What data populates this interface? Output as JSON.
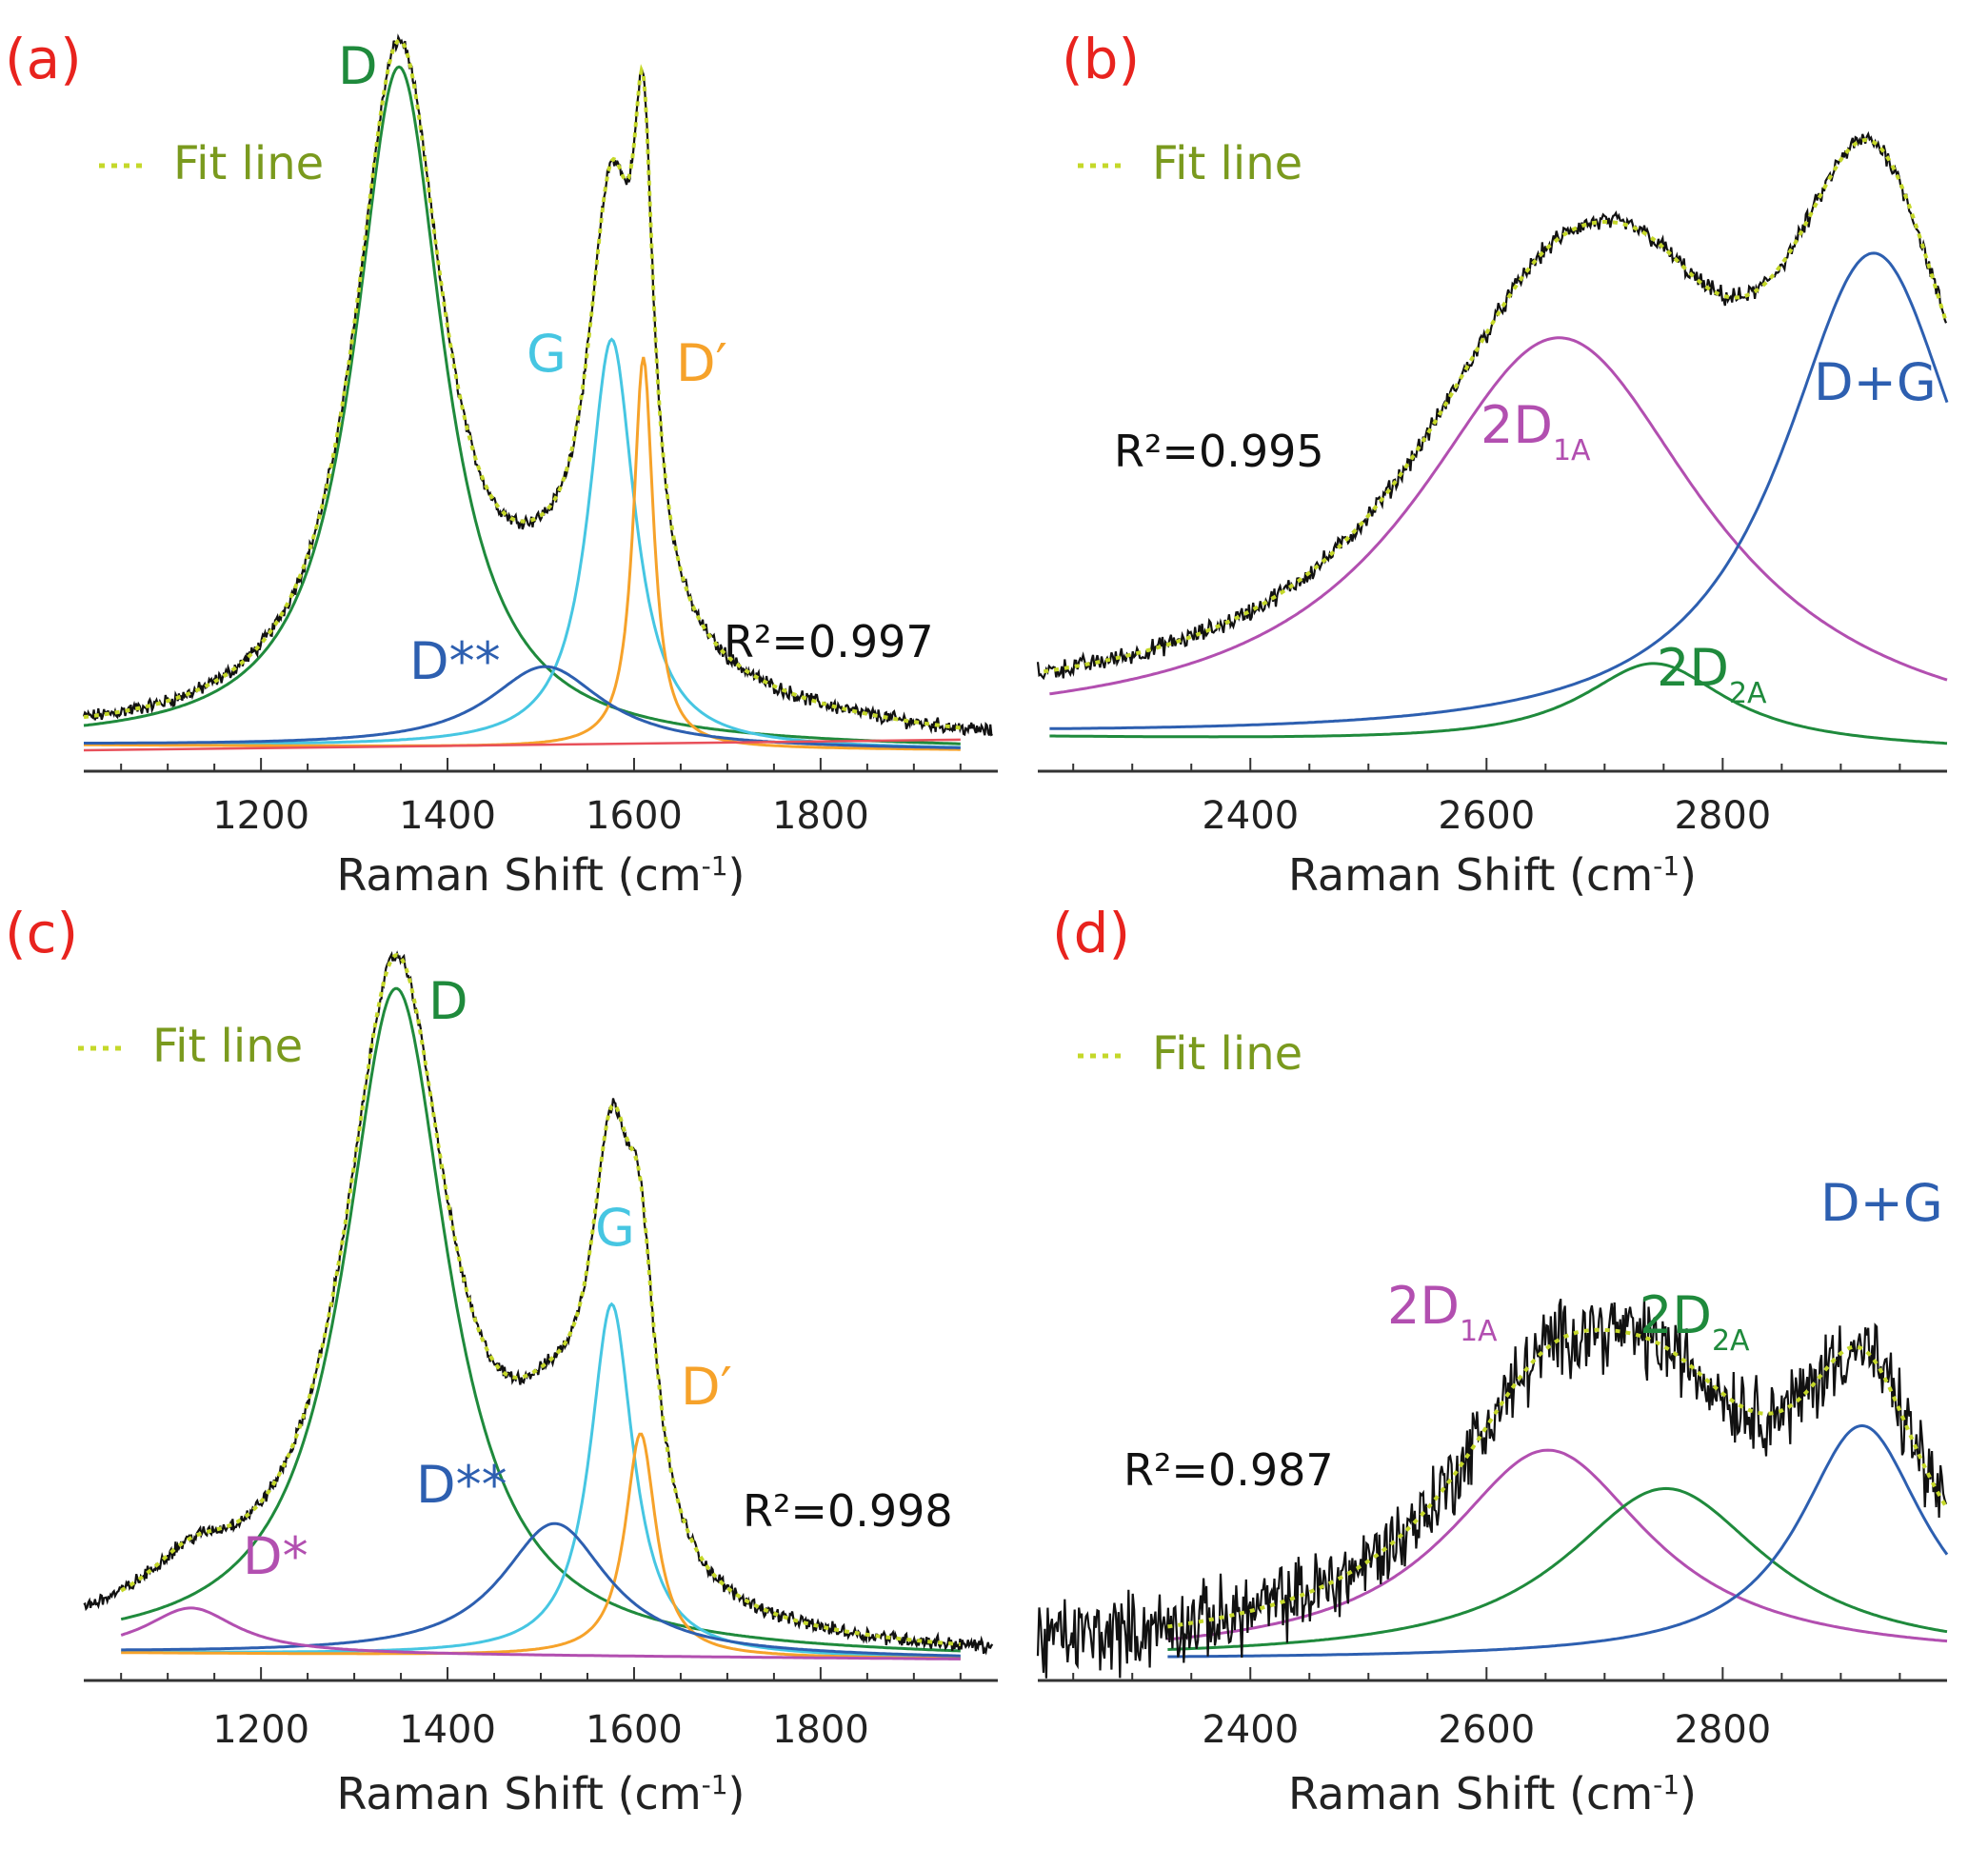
{
  "colors": {
    "panel_letter": "#e8231e",
    "data": "#111111",
    "fit": "#c5d82a",
    "legend_text": "#7a9a1e",
    "D": "#1f8a3c",
    "G": "#46c6e2",
    "D_prime": "#f6a22a",
    "D_star_star": "#2d5fb0",
    "D_star": "#b24fb0",
    "D_plus_G": "#2d5fb0",
    "2D_1A": "#b24fb0",
    "2D_2A": "#1f8a3c",
    "baseline_red": "#e8505a"
  },
  "chart_data": [
    {
      "panel": "(a)",
      "type": "line",
      "xlabel": "Raman Shift (cm",
      "xlabel_sup": "-1",
      "xlabel_end": ")",
      "xlim": [
        1010,
        1990
      ],
      "ylim": [
        0,
        1.0
      ],
      "xticks": [
        1200,
        1400,
        1600,
        1800
      ],
      "legend": {
        "label": "Fit line",
        "position": "top-left"
      },
      "annotation": "R²=0.997",
      "x_range": [
        1010,
        1985
      ],
      "fit_range": [
        1010,
        1950
      ],
      "noise": 0.008,
      "baseline": [
        0.015,
        0.0
      ],
      "extra_linear": {
        "from": [
          1010,
          0.0
        ],
        "to": [
          1950,
          0.015
        ]
      },
      "series": [
        {
          "name": "D",
          "center": 1348,
          "hwhm": 58,
          "amp": 0.965,
          "key": "D",
          "range": [
            1010,
            1950
          ]
        },
        {
          "name": "G",
          "center": 1576,
          "hwhm": 30,
          "amp": 0.58,
          "key": "G",
          "range": [
            1010,
            1950
          ]
        },
        {
          "name": "D′",
          "center": 1610,
          "hwhm": 13,
          "amp": 0.555,
          "key": "D_prime",
          "range": [
            1010,
            1950
          ]
        },
        {
          "name": "D**",
          "center": 1505,
          "hwhm": 75,
          "amp": 0.115,
          "key": "D_star_star",
          "range": [
            1010,
            1950
          ]
        }
      ],
      "tail": {
        "center": 1640,
        "width": 70,
        "amp": 0.06,
        "decay": 220
      }
    },
    {
      "panel": "(b)",
      "type": "line",
      "xlabel": "Raman Shift (cm",
      "xlabel_sup": "-1",
      "xlabel_end": ")",
      "xlim": [
        2220,
        2990
      ],
      "ylim": [
        0,
        1.0
      ],
      "xticks": [
        2400,
        2600,
        2800
      ],
      "legend": {
        "label": "Fit line",
        "position": "top-left"
      },
      "annotation": "R²=0.995",
      "x_range": [
        2220,
        2990
      ],
      "fit_range": [
        2225,
        2990
      ],
      "noise": 0.012,
      "baseline": [
        0.04,
        0.0
      ],
      "series": [
        {
          "name": "2D",
          "sub": "1A",
          "center": 2662,
          "hwhm": 150,
          "amp": 0.64,
          "key": "2D_1A",
          "range": [
            2230,
            2990
          ]
        },
        {
          "name": "2D",
          "sub": "2A",
          "center": 2742,
          "hwhm": 75,
          "amp": 0.13,
          "key": "2D_2A",
          "range": [
            2230,
            2990
          ]
        },
        {
          "name": "D+G",
          "center": 2928,
          "hwhm": 95,
          "amp": 0.78,
          "key": "D_plus_G",
          "range": [
            2230,
            2990
          ]
        }
      ]
    },
    {
      "panel": "(c)",
      "type": "line",
      "xlabel": "Raman Shift (cm",
      "xlabel_sup": "-1",
      "xlabel_end": ")",
      "xlim": [
        1010,
        1990
      ],
      "ylim": [
        0,
        1.0
      ],
      "xticks": [
        1200,
        1400,
        1600,
        1800
      ],
      "legend": {
        "label": "Fit line",
        "position": "top-left"
      },
      "annotation": "R²=0.998",
      "x_range": [
        1010,
        1985
      ],
      "fit_range": [
        1050,
        1950
      ],
      "noise": 0.008,
      "baseline": [
        0.02,
        0.0
      ],
      "series": [
        {
          "name": "D",
          "center": 1345,
          "hwhm": 68,
          "amp": 0.955,
          "key": "D",
          "range": [
            1050,
            1950
          ]
        },
        {
          "name": "G",
          "center": 1576,
          "hwhm": 28,
          "amp": 0.505,
          "key": "G",
          "range": [
            1050,
            1950
          ]
        },
        {
          "name": "D′",
          "center": 1607,
          "hwhm": 20,
          "amp": 0.32,
          "key": "D_prime",
          "range": [
            1050,
            1950
          ]
        },
        {
          "name": "D**",
          "center": 1515,
          "hwhm": 70,
          "amp": 0.19,
          "key": "D_star_star",
          "range": [
            1050,
            1950
          ]
        },
        {
          "name": "D*",
          "center": 1125,
          "hwhm": 60,
          "amp": 0.065,
          "key": "D_star",
          "range": [
            1050,
            1950
          ]
        }
      ]
    },
    {
      "panel": "(d)",
      "type": "line",
      "legend": {
        "label": "Fit line",
        "position": "top-left"
      },
      "xlabel": "Raman Shift (cm",
      "xlabel_sup": "-1",
      "xlabel_end": ")",
      "xlim": [
        2220,
        2990
      ],
      "ylim": [
        0,
        1.0
      ],
      "xticks": [
        2400,
        2600,
        2800
      ],
      "annotation": "R²=0.987",
      "x_range": [
        2220,
        2990
      ],
      "fit_range": [
        2330,
        2990
      ],
      "noise": 0.045,
      "baseline": [
        0.0,
        0.0
      ],
      "series": [
        {
          "name": "2D",
          "sub": "1A",
          "center": 2652,
          "hwhm": 105,
          "amp": 0.3,
          "key": "2D_1A",
          "range": [
            2330,
            2990
          ]
        },
        {
          "name": "2D",
          "sub": "2A",
          "center": 2752,
          "hwhm": 105,
          "amp": 0.245,
          "key": "2D_2A",
          "range": [
            2330,
            2990
          ]
        },
        {
          "name": "D+G",
          "center": 2918,
          "hwhm": 65,
          "amp": 0.335,
          "key": "D_plus_G",
          "range": [
            2330,
            2990
          ]
        }
      ]
    }
  ]
}
